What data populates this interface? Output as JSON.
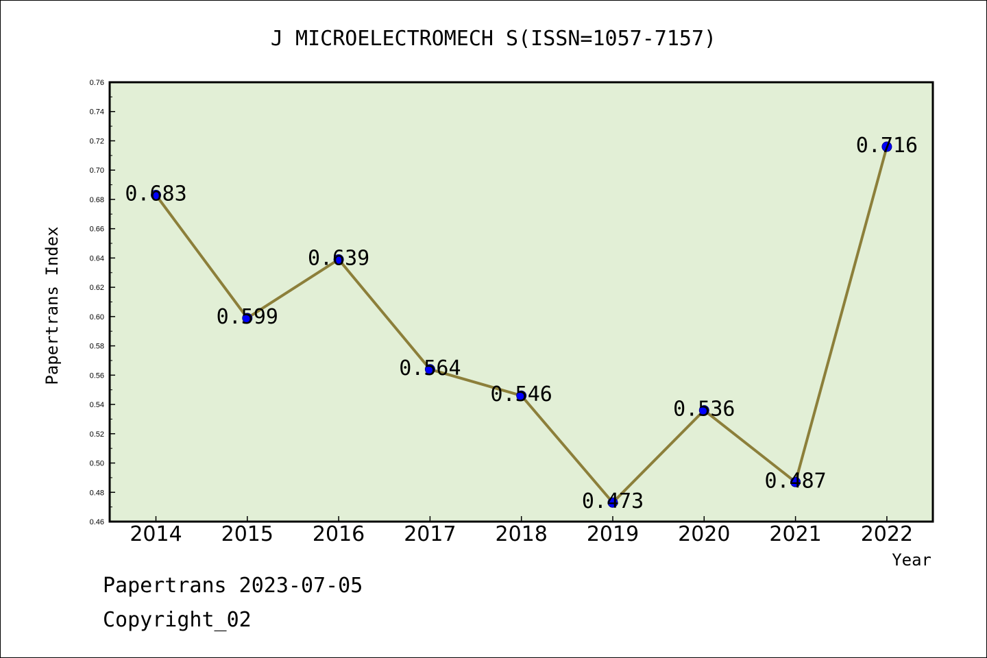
{
  "chart_data": {
    "type": "line",
    "title": "J MICROELECTROMECH S(ISSN=1057-7157)",
    "xlabel": "Year",
    "ylabel": "Papertrans Index",
    "categories": [
      "2014",
      "2015",
      "2016",
      "2017",
      "2018",
      "2019",
      "2020",
      "2021",
      "2022"
    ],
    "series": [
      {
        "values": [
          0.683,
          0.599,
          0.639,
          0.564,
          0.546,
          0.473,
          0.536,
          0.487,
          0.716
        ]
      }
    ],
    "data_labels": [
      "0.683",
      "0.599",
      "0.639",
      "0.564",
      "0.546",
      "0.473",
      "0.536",
      "0.487",
      "0.716"
    ],
    "ylim": [
      0.46,
      0.76
    ],
    "yticks": [
      "0.46",
      "0.48",
      "0.50",
      "0.52",
      "0.54",
      "0.56",
      "0.58",
      "0.60",
      "0.62",
      "0.64",
      "0.66",
      "0.68",
      "0.70",
      "0.72",
      "0.74",
      "0.76"
    ],
    "grid": false,
    "legend": "none",
    "colors": {
      "plot_background": "#e2efd6",
      "line": "#8c7f3a",
      "marker": "#0000ff"
    }
  },
  "footer": {
    "line1": "Papertrans 2023-07-05",
    "line2": "Copyright_02"
  }
}
